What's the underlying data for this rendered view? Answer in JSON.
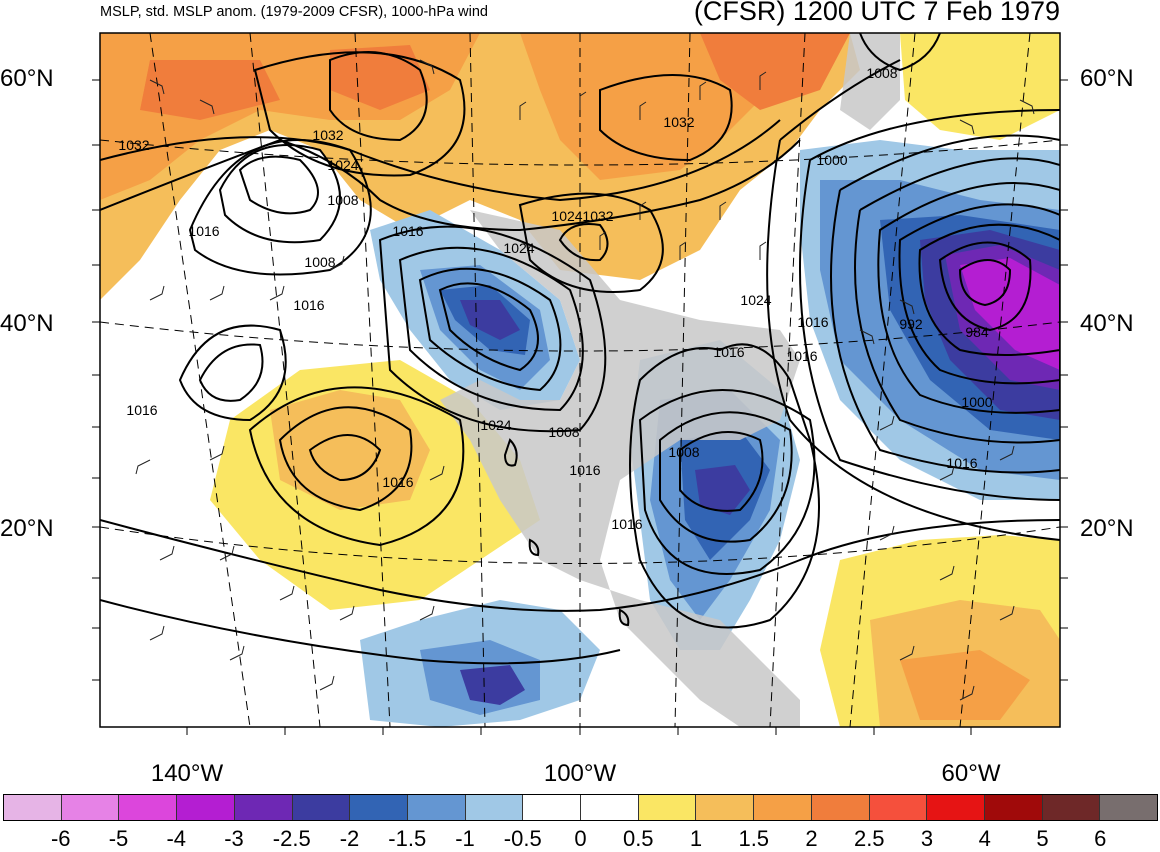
{
  "header": {
    "left_title": "MSLP, std. MSLP anom. (1979-2009 CFSR), 1000-hPa wind",
    "right_title": "(CFSR) 1200 UTC 7 Feb 1979"
  },
  "axes": {
    "lat_labels": [
      "60°N",
      "40°N",
      "20°N"
    ],
    "lon_labels": [
      "140°W",
      "100°W",
      "60°W"
    ]
  },
  "isobar_labels": [
    "1032",
    "1032",
    "1024",
    "1008",
    "1016",
    "1008",
    "1016",
    "1016",
    "1024",
    "1016",
    "1024",
    "1008",
    "1016",
    "1016",
    "1016",
    "1032",
    "1024",
    "1032",
    "1024",
    "1016",
    "1016",
    "1008",
    "1016",
    "1008",
    "1000",
    "992",
    "984",
    "1000",
    "1016"
  ],
  "colorbar": {
    "colors": [
      "#e6b4e6",
      "#e682e6",
      "#dc46dc",
      "#b41ed2",
      "#6e28b4",
      "#3c3ca0",
      "#3264b4",
      "#6496d2",
      "#a0c8e6",
      "#ffffff",
      "#ffffff",
      "#fae664",
      "#f5be5a",
      "#f5a046",
      "#f07d3c",
      "#f5503c",
      "#e61414",
      "#a00a0a",
      "#6e2828",
      "#786e6e"
    ],
    "ticks": [
      "-6",
      "-5",
      "-4",
      "-3",
      "-2.5",
      "-2",
      "-1.5",
      "-1",
      "-0.5",
      "0",
      "0.5",
      "1",
      "1.5",
      "2",
      "2.5",
      "3",
      "4",
      "5",
      "6"
    ]
  }
}
